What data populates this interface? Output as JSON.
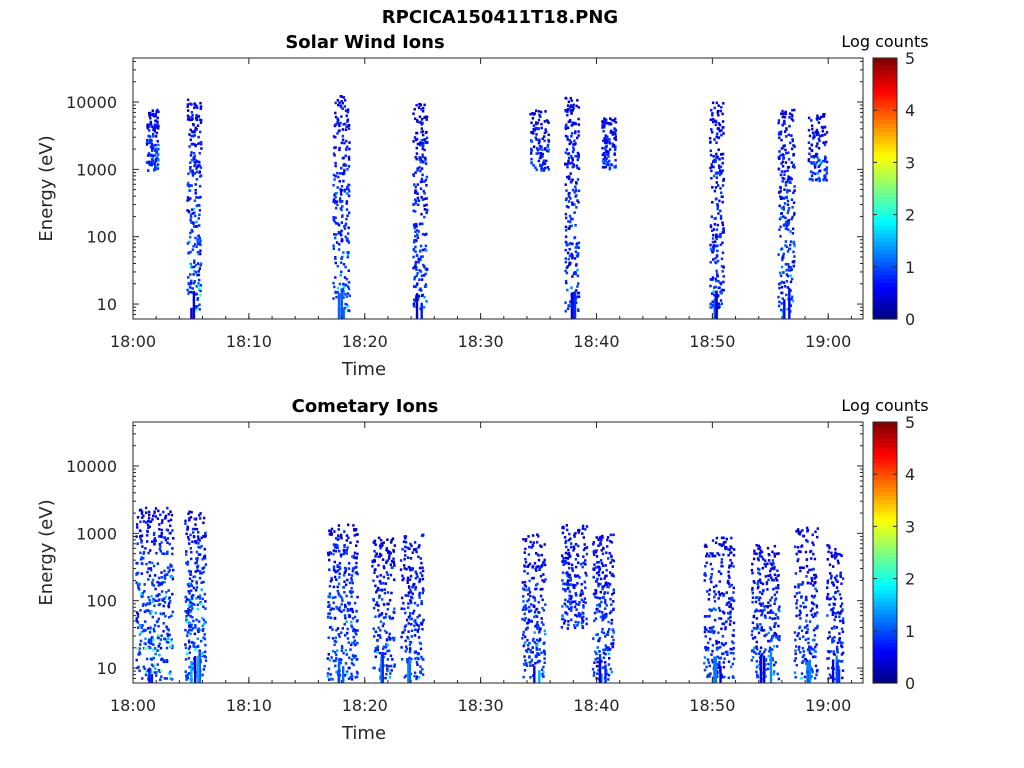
{
  "figure_title": "RPCICA150411T18.PNG",
  "chart_data": [
    {
      "type": "heatmap",
      "title": "Solar Wind Ions",
      "xlabel": "Time",
      "ylabel": "Energy (eV)",
      "x_ticks": [
        "18:00",
        "18:10",
        "18:20",
        "18:30",
        "18:40",
        "18:50",
        "19:00"
      ],
      "y_ticks": [
        "10",
        "100",
        "1000",
        "10000"
      ],
      "y_scale": "log",
      "ylim": [
        6,
        45000
      ],
      "xlim": [
        "18:00",
        "19:03"
      ],
      "colorbar": {
        "label": "Log counts",
        "range": [
          0,
          5
        ],
        "ticks": [
          "0",
          "1",
          "2",
          "3",
          "4",
          "5"
        ],
        "colormap": "jet"
      },
      "clusters": [
        {
          "t": 5.2,
          "spread": 0.6,
          "emin": 8,
          "emax": 12000,
          "peak": 2.2,
          "density": 0.9
        },
        {
          "t": 1.6,
          "spread": 0.5,
          "emin": 1000,
          "emax": 8000,
          "peak": 1.6,
          "density": 0.5
        },
        {
          "t": 17.9,
          "spread": 0.7,
          "emin": 8,
          "emax": 13000,
          "peak": 1.7,
          "density": 0.85
        },
        {
          "t": 24.7,
          "spread": 0.6,
          "emin": 8,
          "emax": 10000,
          "peak": 1.6,
          "density": 0.85
        },
        {
          "t": 37.8,
          "spread": 0.6,
          "emin": 8,
          "emax": 12000,
          "peak": 1.6,
          "density": 0.85
        },
        {
          "t": 35.0,
          "spread": 0.8,
          "emin": 1000,
          "emax": 8000,
          "peak": 1.2,
          "density": 0.35
        },
        {
          "t": 41.0,
          "spread": 0.6,
          "emin": 1000,
          "emax": 6000,
          "peak": 1.3,
          "density": 0.4
        },
        {
          "t": 50.3,
          "spread": 0.6,
          "emin": 8,
          "emax": 11000,
          "peak": 1.4,
          "density": 0.85
        },
        {
          "t": 56.3,
          "spread": 0.7,
          "emin": 8,
          "emax": 8000,
          "peak": 1.8,
          "density": 0.85
        },
        {
          "t": 59.0,
          "spread": 0.8,
          "emin": 700,
          "emax": 7000,
          "peak": 1.2,
          "density": 0.4
        }
      ]
    },
    {
      "type": "heatmap",
      "title": "Cometary Ions",
      "xlabel": "Time",
      "ylabel": "Energy (eV)",
      "x_ticks": [
        "18:00",
        "18:10",
        "18:20",
        "18:30",
        "18:40",
        "18:50",
        "19:00"
      ],
      "y_ticks": [
        "10",
        "100",
        "1000",
        "10000"
      ],
      "y_scale": "log",
      "ylim": [
        6,
        45000
      ],
      "xlim": [
        "18:00",
        "19:03"
      ],
      "colorbar": {
        "label": "Log counts",
        "range": [
          0,
          5
        ],
        "ticks": [
          "0",
          "1",
          "2",
          "3",
          "4",
          "5"
        ],
        "colormap": "jet"
      },
      "clusters": [
        {
          "t": 1.8,
          "spread": 1.6,
          "emin": 7,
          "emax": 2500,
          "peak": 3.0,
          "density": 0.9
        },
        {
          "t": 5.3,
          "spread": 0.9,
          "emin": 7,
          "emax": 2200,
          "peak": 2.6,
          "density": 0.85
        },
        {
          "t": 18.0,
          "spread": 1.3,
          "emin": 7,
          "emax": 1400,
          "peak": 2.2,
          "density": 0.8
        },
        {
          "t": 21.5,
          "spread": 1.0,
          "emin": 7,
          "emax": 900,
          "peak": 1.8,
          "density": 0.6
        },
        {
          "t": 24.0,
          "spread": 1.0,
          "emin": 7,
          "emax": 1000,
          "peak": 1.7,
          "density": 0.6
        },
        {
          "t": 34.5,
          "spread": 1.0,
          "emin": 7,
          "emax": 1000,
          "peak": 1.7,
          "density": 0.7
        },
        {
          "t": 38.0,
          "spread": 1.1,
          "emin": 40,
          "emax": 1400,
          "peak": 1.4,
          "density": 0.6
        },
        {
          "t": 40.5,
          "spread": 0.9,
          "emin": 7,
          "emax": 1000,
          "peak": 1.6,
          "density": 0.7
        },
        {
          "t": 50.5,
          "spread": 1.3,
          "emin": 7,
          "emax": 1000,
          "peak": 1.5,
          "density": 0.65
        },
        {
          "t": 54.5,
          "spread": 1.2,
          "emin": 7,
          "emax": 700,
          "peak": 1.8,
          "density": 0.7
        },
        {
          "t": 58.0,
          "spread": 1.0,
          "emin": 7,
          "emax": 1300,
          "peak": 1.5,
          "density": 0.6
        },
        {
          "t": 60.5,
          "spread": 0.7,
          "emin": 7,
          "emax": 700,
          "peak": 1.2,
          "density": 0.5
        }
      ]
    }
  ]
}
